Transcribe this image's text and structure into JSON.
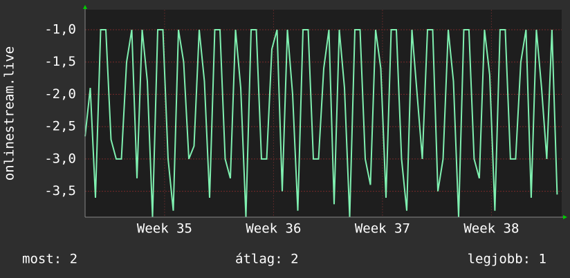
{
  "chart_data": {
    "type": "line",
    "ylabel": "onlinestream.live",
    "xlim": [
      0,
      735
    ],
    "ylim": [
      -3.9,
      -0.69
    ],
    "yticks": [
      {
        "value": -1,
        "label": "-1,0"
      },
      {
        "value": -1.5,
        "label": "-1,5"
      },
      {
        "value": -2,
        "label": "-2,0"
      },
      {
        "value": -2.5,
        "label": "-2,5"
      },
      {
        "value": -3,
        "label": "-3,0"
      },
      {
        "value": -3.5,
        "label": "-3,5"
      }
    ],
    "xticks": [
      {
        "value": 122.6,
        "label": "Week 35"
      },
      {
        "value": 290.6,
        "label": "Week 36"
      },
      {
        "value": 458.6,
        "label": "Week 37"
      },
      {
        "value": 626.6,
        "label": "Week 38"
      }
    ],
    "grid": true,
    "series": [
      {
        "name": "onlinestream.live",
        "color": "#7ff0b0",
        "x": [
          0,
          8,
          16,
          24,
          32,
          40,
          48,
          56,
          64,
          72,
          80,
          88,
          96,
          104,
          112,
          120,
          128,
          136,
          144,
          152,
          160,
          168,
          176,
          184,
          192,
          200,
          208,
          216,
          224,
          232,
          240,
          248,
          256,
          264,
          272,
          280,
          288,
          296,
          304,
          312,
          320,
          328,
          336,
          344,
          352,
          360,
          368,
          376,
          384,
          392,
          400,
          408,
          416,
          424,
          432,
          440,
          448,
          456,
          464,
          472,
          480,
          488,
          496,
          504,
          512,
          520,
          528,
          536,
          544,
          552,
          560,
          568,
          576,
          584,
          592,
          600,
          608,
          616,
          624,
          632,
          640,
          648,
          656,
          664,
          672,
          680,
          688,
          696,
          704,
          712,
          720,
          728
        ],
        "values": [
          -2.65,
          -1.9,
          -3.6,
          -1.0,
          -1.0,
          -2.7,
          -3.0,
          -3.0,
          -1.5,
          -1.0,
          -3.3,
          -1.0,
          -1.8,
          -3.9,
          -1.0,
          -1.0,
          -3.0,
          -3.8,
          -1.0,
          -1.5,
          -3.0,
          -2.8,
          -1.0,
          -1.8,
          -3.6,
          -1.0,
          -1.0,
          -3.0,
          -3.3,
          -1.0,
          -1.9,
          -3.9,
          -1.0,
          -1.0,
          -3.0,
          -3.0,
          -1.3,
          -1.0,
          -3.5,
          -1.0,
          -2.0,
          -3.8,
          -1.0,
          -1.0,
          -3.0,
          -3.0,
          -1.6,
          -1.0,
          -3.7,
          -1.0,
          -1.9,
          -3.9,
          -1.0,
          -1.0,
          -3.0,
          -3.4,
          -1.0,
          -1.6,
          -3.6,
          -1.0,
          -1.0,
          -3.0,
          -3.8,
          -1.0,
          -2.0,
          -3.0,
          -1.0,
          -1.0,
          -3.5,
          -3.0,
          -1.0,
          -1.8,
          -3.9,
          -1.0,
          -1.0,
          -3.0,
          -3.3,
          -1.0,
          -1.7,
          -3.8,
          -1.0,
          -1.0,
          -3.0,
          -3.0,
          -1.5,
          -1.0,
          -3.6,
          -1.0,
          -1.9,
          -3.0,
          -1.0,
          -3.55
        ]
      }
    ],
    "footer": {
      "current": "most: 2",
      "average": "átlag: 2",
      "best": "legjobb: 1"
    }
  }
}
